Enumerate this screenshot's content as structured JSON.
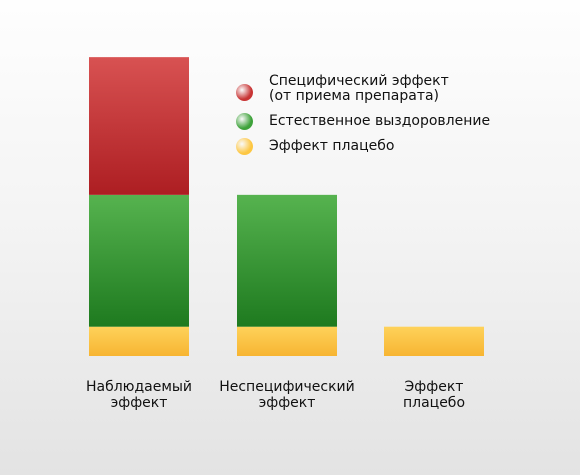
{
  "chart_data": {
    "type": "bar",
    "stacked": true,
    "categories": [
      "Наблюдаемый\nэффект",
      "Неспецифический\nэффект",
      "Эффект\nплацебо"
    ],
    "series": [
      {
        "name": "Эффект плацебо",
        "color": "#fdc743",
        "values": [
          1,
          1,
          1
        ]
      },
      {
        "name": "Естественное выздоровление",
        "color": "#3ea23a",
        "values": [
          4.5,
          4.5,
          0
        ]
      },
      {
        "name": "Специфический эффект\n (от приема препарата)",
        "color": "#c83434",
        "values": [
          4.7,
          0,
          0
        ]
      }
    ],
    "legend_order": [
      2,
      1,
      0
    ],
    "legend_position": "top-right",
    "grid": false
  }
}
